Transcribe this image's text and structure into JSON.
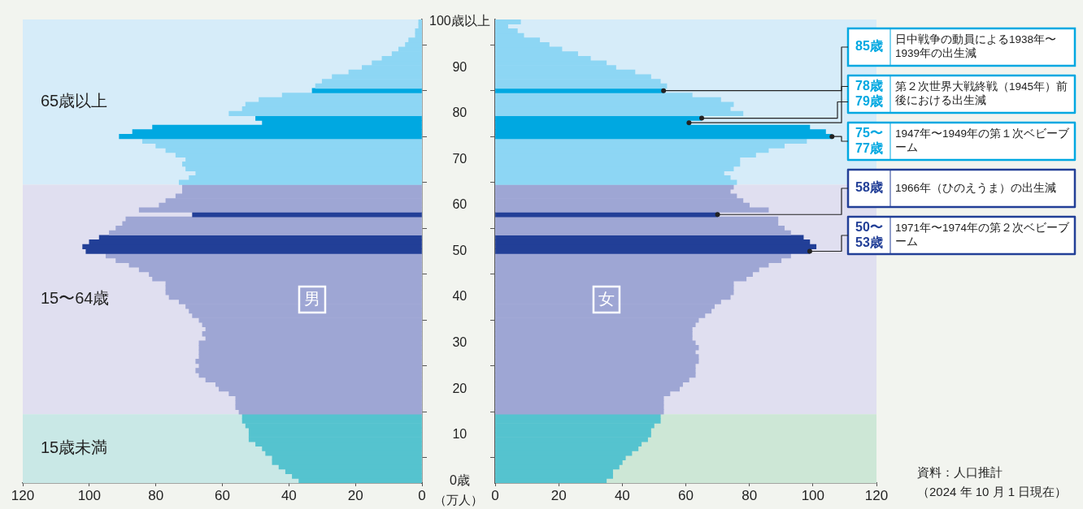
{
  "chart_data": [
    {
      "type": "bar",
      "orientation": "horizontal",
      "title": "男",
      "xlabel": "（万人）",
      "x": [
        0,
        1,
        2,
        3,
        4,
        5,
        6,
        7,
        8,
        9,
        10,
        11,
        12,
        13,
        14,
        15,
        16,
        17,
        18,
        19,
        20,
        21,
        22,
        23,
        24,
        25,
        26,
        27,
        28,
        29,
        30,
        31,
        32,
        33,
        34,
        35,
        36,
        37,
        38,
        39,
        40,
        41,
        42,
        43,
        44,
        45,
        46,
        47,
        48,
        49,
        50,
        51,
        52,
        53,
        54,
        55,
        56,
        57,
        58,
        59,
        60,
        61,
        62,
        63,
        64,
        65,
        66,
        67,
        68,
        69,
        70,
        71,
        72,
        73,
        74,
        75,
        76,
        77,
        78,
        79,
        80,
        81,
        82,
        83,
        84,
        85,
        86,
        87,
        88,
        89,
        90,
        91,
        92,
        93,
        94,
        95,
        96,
        97,
        98,
        99,
        100
      ],
      "values": [
        37,
        39,
        41,
        43,
        45,
        45,
        47,
        48,
        50,
        52,
        52,
        52,
        53,
        54,
        54,
        55,
        56,
        56,
        56,
        58,
        61,
        62,
        65,
        67,
        68,
        67,
        68,
        67,
        67,
        67,
        67,
        65,
        66,
        65,
        66,
        67,
        69,
        70,
        71,
        73,
        76,
        77,
        77,
        77,
        81,
        82,
        85,
        88,
        92,
        95,
        101,
        102,
        100,
        97,
        94,
        92,
        90,
        89,
        69,
        85,
        79,
        77,
        74,
        72,
        72,
        73,
        70,
        68,
        71,
        72,
        71,
        74,
        77,
        80,
        84,
        91,
        87,
        81,
        48,
        50,
        58,
        54,
        53,
        49,
        42,
        33,
        32,
        30,
        27,
        22,
        18,
        15,
        12,
        9,
        7,
        5,
        4,
        2,
        2,
        1,
        1
      ],
      "colors": [
        "#55c3cf",
        "#55c3cf",
        "#55c3cf",
        "#55c3cf",
        "#55c3cf",
        "#55c3cf",
        "#55c3cf",
        "#55c3cf",
        "#55c3cf",
        "#55c3cf",
        "#55c3cf",
        "#55c3cf",
        "#55c3cf",
        "#55c3cf",
        "#55c3cf",
        "#9ea6d4",
        "#9ea6d4",
        "#9ea6d4",
        "#9ea6d4",
        "#9ea6d4",
        "#9ea6d4",
        "#9ea6d4",
        "#9ea6d4",
        "#9ea6d4",
        "#9ea6d4",
        "#9ea6d4",
        "#9ea6d4",
        "#9ea6d4",
        "#9ea6d4",
        "#9ea6d4",
        "#9ea6d4",
        "#9ea6d4",
        "#9ea6d4",
        "#9ea6d4",
        "#9ea6d4",
        "#9ea6d4",
        "#9ea6d4",
        "#9ea6d4",
        "#9ea6d4",
        "#9ea6d4",
        "#9ea6d4",
        "#9ea6d4",
        "#9ea6d4",
        "#9ea6d4",
        "#9ea6d4",
        "#9ea6d4",
        "#9ea6d4",
        "#9ea6d4",
        "#9ea6d4",
        "#9ea6d4",
        "#223f97",
        "#223f97",
        "#223f97",
        "#223f97",
        "#9ea6d4",
        "#9ea6d4",
        "#9ea6d4",
        "#9ea6d4",
        "#223f97",
        "#9ea6d4",
        "#9ea6d4",
        "#9ea6d4",
        "#9ea6d4",
        "#9ea6d4",
        "#9ea6d4",
        "#8dd6f4",
        "#8dd6f4",
        "#8dd6f4",
        "#8dd6f4",
        "#8dd6f4",
        "#8dd6f4",
        "#8dd6f4",
        "#8dd6f4",
        "#8dd6f4",
        "#8dd6f4",
        "#00a8e1",
        "#00a8e1",
        "#00a8e1",
        "#00a8e1",
        "#00a8e1",
        "#8dd6f4",
        "#8dd6f4",
        "#8dd6f4",
        "#8dd6f4",
        "#8dd6f4",
        "#00a8e1",
        "#8dd6f4",
        "#8dd6f4",
        "#8dd6f4",
        "#8dd6f4",
        "#8dd6f4",
        "#8dd6f4",
        "#8dd6f4",
        "#8dd6f4",
        "#8dd6f4",
        "#8dd6f4",
        "#8dd6f4",
        "#8dd6f4",
        "#8dd6f4",
        "#8dd6f4",
        "#8dd6f4"
      ],
      "xlim": [
        120,
        0
      ],
      "xticks": [
        120,
        100,
        80,
        60,
        40,
        20,
        0
      ],
      "ylim": [
        -0.5,
        100.5
      ],
      "yticks": [
        {
          "value": 0,
          "label": "0歳"
        },
        10,
        20,
        30,
        40,
        50,
        60,
        70,
        80,
        90,
        {
          "value": 100,
          "label": "100歳以上"
        }
      ],
      "bands": [
        {
          "axis": "y",
          "from": 64.5,
          "to": 100.5,
          "label": "65歳以上",
          "color": "#d6ecf9"
        },
        {
          "axis": "y",
          "from": 14.5,
          "to": 64.5,
          "label": "15〜64歳",
          "color": "#e0dff0"
        },
        {
          "axis": "y",
          "from": -0.5,
          "to": 14.5,
          "label": "15歳未満",
          "color": "#c9e8e6"
        }
      ]
    },
    {
      "type": "bar",
      "orientation": "horizontal",
      "title": "女",
      "tick_labels": "x",
      "x": [
        0,
        1,
        2,
        3,
        4,
        5,
        6,
        7,
        8,
        9,
        10,
        11,
        12,
        13,
        14,
        15,
        16,
        17,
        18,
        19,
        20,
        21,
        22,
        23,
        24,
        25,
        26,
        27,
        28,
        29,
        30,
        31,
        32,
        33,
        34,
        35,
        36,
        37,
        38,
        39,
        40,
        41,
        42,
        43,
        44,
        45,
        46,
        47,
        48,
        49,
        50,
        51,
        52,
        53,
        54,
        55,
        56,
        57,
        58,
        59,
        60,
        61,
        62,
        63,
        64,
        65,
        66,
        67,
        68,
        69,
        70,
        71,
        72,
        73,
        74,
        75,
        76,
        77,
        78,
        79,
        80,
        81,
        82,
        83,
        84,
        85,
        86,
        87,
        88,
        89,
        90,
        91,
        92,
        93,
        94,
        95,
        96,
        97,
        98,
        99,
        100
      ],
      "values": [
        35,
        37,
        37,
        39,
        40,
        41,
        43,
        45,
        46,
        48,
        49,
        49,
        50,
        52,
        52,
        53,
        53,
        53,
        53,
        55,
        58,
        59,
        61,
        63,
        63,
        63,
        64,
        64,
        63,
        64,
        63,
        62,
        62,
        62,
        63,
        64,
        66,
        68,
        69,
        71,
        74,
        75,
        75,
        75,
        79,
        81,
        83,
        86,
        90,
        93,
        99,
        101,
        99,
        97,
        93,
        91,
        89,
        89,
        70,
        86,
        80,
        78,
        76,
        74,
        75,
        76,
        74,
        72,
        75,
        77,
        77,
        82,
        86,
        91,
        98,
        106,
        104,
        99,
        61,
        65,
        78,
        74,
        75,
        71,
        62,
        53,
        54,
        52,
        49,
        44,
        38,
        35,
        30,
        26,
        21,
        17,
        14,
        9,
        7,
        4,
        8
      ],
      "colors": [
        "#55c3cf",
        "#55c3cf",
        "#55c3cf",
        "#55c3cf",
        "#55c3cf",
        "#55c3cf",
        "#55c3cf",
        "#55c3cf",
        "#55c3cf",
        "#55c3cf",
        "#55c3cf",
        "#55c3cf",
        "#55c3cf",
        "#55c3cf",
        "#55c3cf",
        "#9ea6d4",
        "#9ea6d4",
        "#9ea6d4",
        "#9ea6d4",
        "#9ea6d4",
        "#9ea6d4",
        "#9ea6d4",
        "#9ea6d4",
        "#9ea6d4",
        "#9ea6d4",
        "#9ea6d4",
        "#9ea6d4",
        "#9ea6d4",
        "#9ea6d4",
        "#9ea6d4",
        "#9ea6d4",
        "#9ea6d4",
        "#9ea6d4",
        "#9ea6d4",
        "#9ea6d4",
        "#9ea6d4",
        "#9ea6d4",
        "#9ea6d4",
        "#9ea6d4",
        "#9ea6d4",
        "#9ea6d4",
        "#9ea6d4",
        "#9ea6d4",
        "#9ea6d4",
        "#9ea6d4",
        "#9ea6d4",
        "#9ea6d4",
        "#9ea6d4",
        "#9ea6d4",
        "#9ea6d4",
        "#223f97",
        "#223f97",
        "#223f97",
        "#223f97",
        "#9ea6d4",
        "#9ea6d4",
        "#9ea6d4",
        "#9ea6d4",
        "#223f97",
        "#9ea6d4",
        "#9ea6d4",
        "#9ea6d4",
        "#9ea6d4",
        "#9ea6d4",
        "#9ea6d4",
        "#8dd6f4",
        "#8dd6f4",
        "#8dd6f4",
        "#8dd6f4",
        "#8dd6f4",
        "#8dd6f4",
        "#8dd6f4",
        "#8dd6f4",
        "#8dd6f4",
        "#8dd6f4",
        "#00a8e1",
        "#00a8e1",
        "#00a8e1",
        "#00a8e1",
        "#00a8e1",
        "#8dd6f4",
        "#8dd6f4",
        "#8dd6f4",
        "#8dd6f4",
        "#8dd6f4",
        "#00a8e1",
        "#8dd6f4",
        "#8dd6f4",
        "#8dd6f4",
        "#8dd6f4",
        "#8dd6f4",
        "#8dd6f4",
        "#8dd6f4",
        "#8dd6f4",
        "#8dd6f4",
        "#8dd6f4",
        "#8dd6f4",
        "#8dd6f4",
        "#8dd6f4",
        "#8dd6f4",
        "#8dd6f4"
      ],
      "xlim": [
        0,
        120
      ],
      "xticks": [
        0,
        20,
        40,
        60,
        80,
        100,
        120
      ],
      "ylim": [
        -0.5,
        100.5
      ],
      "yticks": [
        0,
        10,
        20,
        30,
        40,
        50,
        60,
        70,
        80,
        90,
        100
      ],
      "bands": [
        {
          "axis": "y",
          "from": 64.5,
          "to": 100.5,
          "color": "#d6ecf9"
        },
        {
          "axis": "y",
          "from": 14.5,
          "to": 64.5,
          "color": "#e0dff0"
        },
        {
          "axis": "y",
          "from": -0.5,
          "to": 14.5,
          "color": "#cde7d6"
        }
      ],
      "annotations": [
        {
          "text": "85歳",
          "x": 53,
          "y": 85
        },
        "日中戦争の動員による1938年〜1939年の出生減",
        {
          "text": "78歳",
          "x": 61,
          "y": 78
        },
        {
          "text": "79歳",
          "x": 65,
          "y": 79
        },
        "第２次世界大戦終戦（1945年）前後における出生減",
        {
          "text": "75〜77歳",
          "x": 106,
          "y": 75
        },
        "1947年〜1949年の第１次ベビーブーム",
        {
          "text": "58歳",
          "x": 70,
          "y": 58
        },
        "1966年（ひのえうま）の出生減",
        {
          "text": "50〜53歳",
          "x": 99,
          "y": 50
        },
        "1971年〜1974年の第２次ベビーブーム",
        "資料：人口推計",
        "（2024 年 10 月 1 日現在）"
      ]
    }
  ]
}
